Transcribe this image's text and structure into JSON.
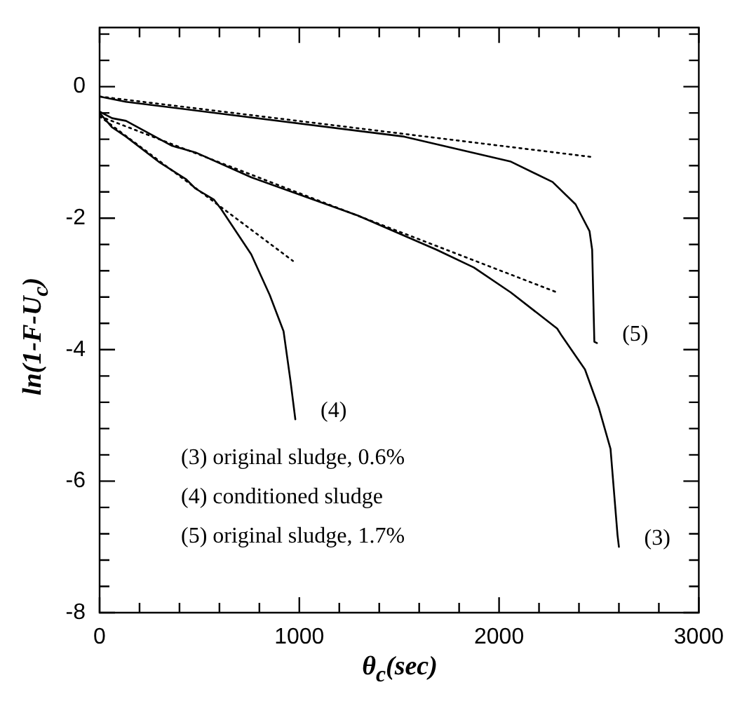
{
  "chart_data": {
    "type": "line",
    "xlabel": "θ$_{c}$(sec)",
    "ylabel": "ln(1-F-U$_{c}$)",
    "xlim": [
      0,
      3000
    ],
    "ylim": [
      -8,
      0.9
    ],
    "xticks": [
      0,
      {
        "value": 200,
        "label": null
      },
      {
        "value": 400,
        "label": null
      },
      {
        "value": 600,
        "label": null
      },
      {
        "value": 800,
        "label": null
      },
      1000,
      {
        "value": 1200,
        "label": null
      },
      {
        "value": 1400,
        "label": null
      },
      {
        "value": 1600,
        "label": null
      },
      {
        "value": 1800,
        "label": null
      },
      2000,
      {
        "value": 2200,
        "label": null
      },
      {
        "value": 2400,
        "label": null
      },
      {
        "value": 2600,
        "label": null
      },
      {
        "value": 2800,
        "label": null
      },
      3000
    ],
    "yticks": [
      -8,
      {
        "value": -7.6,
        "label": null
      },
      {
        "value": -7.2,
        "label": null
      },
      {
        "value": -6.8,
        "label": null
      },
      {
        "value": -6.4,
        "label": null
      },
      -6,
      {
        "value": -5.6,
        "label": null
      },
      {
        "value": -5.2,
        "label": null
      },
      {
        "value": -4.8,
        "label": null
      },
      {
        "value": -4.4,
        "label": null
      },
      -4,
      {
        "value": -3.6,
        "label": null
      },
      {
        "value": -3.2,
        "label": null
      },
      {
        "value": -2.8,
        "label": null
      },
      {
        "value": -2.4,
        "label": null
      },
      -2,
      {
        "value": -1.6,
        "label": null
      },
      {
        "value": -1.2,
        "label": null
      },
      {
        "value": -0.8,
        "label": null
      },
      {
        "value": -0.4,
        "label": null
      },
      0,
      {
        "value": 0.4,
        "label": null
      },
      {
        "value": 0.8,
        "label": null
      }
    ],
    "grid": false,
    "legend": false,
    "marker": "none",
    "line_style": "solid",
    "series": [
      {
        "color": "#000000",
        "x": [
          0,
          63,
          132,
          363,
          480,
          760,
          1293,
          1687,
          1874,
          2059,
          2291,
          2314,
          2430,
          2500,
          2558,
          2593,
          2600
        ],
        "values": [
          -0.38,
          -0.48,
          -0.52,
          -0.9,
          -1.0,
          -1.38,
          -1.96,
          -2.48,
          -2.75,
          -3.13,
          -3.68,
          -3.79,
          -4.3,
          -4.89,
          -5.51,
          -6.82,
          -7.0
        ]
      },
      {
        "color": "#000000",
        "x": [
          0,
          63,
          132,
          295,
          434,
          480,
          573,
          608,
          759,
          852,
          921,
          956,
          980
        ],
        "values": [
          -0.4,
          -0.62,
          -0.76,
          -1.14,
          -1.41,
          -1.55,
          -1.72,
          -1.86,
          -2.55,
          -3.17,
          -3.72,
          -4.48,
          -5.06
        ]
      },
      {
        "color": "#000000",
        "x": [
          0,
          132,
          1525,
          2059,
          2268,
          2383,
          2453,
          2466,
          2477,
          2490
        ],
        "values": [
          -0.15,
          -0.23,
          -0.76,
          -1.14,
          -1.45,
          -1.79,
          -2.2,
          -2.48,
          -3.88,
          -3.9
        ]
      },
      {
        "color": "#000000",
        "line_style": "dotted",
        "x": [
          0,
          2291
        ],
        "values": [
          -0.45,
          -3.13
        ]
      },
      {
        "color": "#000000",
        "line_style": "dotted",
        "x": [
          0,
          968
        ],
        "values": [
          -0.45,
          -2.65
        ]
      },
      {
        "color": "#000000",
        "line_style": "dotted",
        "x": [
          0,
          2465
        ],
        "values": [
          -0.15,
          -1.07
        ]
      }
    ],
    "annotations": [
      {
        "text": "(3)",
        "x": 2600,
        "y": -7.0
      },
      {
        "text": "(4)",
        "x": 980,
        "y": -5.06
      },
      {
        "text": "(5)",
        "x": 2490,
        "y": -3.9
      },
      "(3) original sludge, 0.6%",
      "(4) conditioned sludge",
      "(5) original sludge, 1.7%"
    ]
  }
}
